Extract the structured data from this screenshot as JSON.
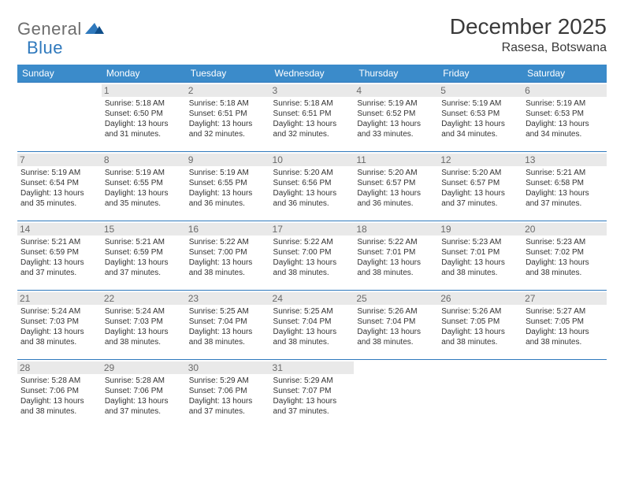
{
  "brand": {
    "general": "General",
    "blue": "Blue"
  },
  "title": "December 2025",
  "location": "Rasesa, Botswana",
  "colors": {
    "header_bg": "#3b8bca",
    "header_text": "#ffffff",
    "border": "#2f79bd",
    "daynum_bg": "#e9e9e9",
    "daynum_text": "#6a6a6a",
    "body_text": "#333333",
    "logo_gray": "#6d6d6d",
    "logo_blue": "#2f79bd"
  },
  "weekdays": [
    "Sunday",
    "Monday",
    "Tuesday",
    "Wednesday",
    "Thursday",
    "Friday",
    "Saturday"
  ],
  "weeks": [
    [
      null,
      {
        "n": "1",
        "sr": "5:18 AM",
        "ss": "6:50 PM",
        "dl": "13 hours and 31 minutes."
      },
      {
        "n": "2",
        "sr": "5:18 AM",
        "ss": "6:51 PM",
        "dl": "13 hours and 32 minutes."
      },
      {
        "n": "3",
        "sr": "5:18 AM",
        "ss": "6:51 PM",
        "dl": "13 hours and 32 minutes."
      },
      {
        "n": "4",
        "sr": "5:19 AM",
        "ss": "6:52 PM",
        "dl": "13 hours and 33 minutes."
      },
      {
        "n": "5",
        "sr": "5:19 AM",
        "ss": "6:53 PM",
        "dl": "13 hours and 34 minutes."
      },
      {
        "n": "6",
        "sr": "5:19 AM",
        "ss": "6:53 PM",
        "dl": "13 hours and 34 minutes."
      }
    ],
    [
      {
        "n": "7",
        "sr": "5:19 AM",
        "ss": "6:54 PM",
        "dl": "13 hours and 35 minutes."
      },
      {
        "n": "8",
        "sr": "5:19 AM",
        "ss": "6:55 PM",
        "dl": "13 hours and 35 minutes."
      },
      {
        "n": "9",
        "sr": "5:19 AM",
        "ss": "6:55 PM",
        "dl": "13 hours and 36 minutes."
      },
      {
        "n": "10",
        "sr": "5:20 AM",
        "ss": "6:56 PM",
        "dl": "13 hours and 36 minutes."
      },
      {
        "n": "11",
        "sr": "5:20 AM",
        "ss": "6:57 PM",
        "dl": "13 hours and 36 minutes."
      },
      {
        "n": "12",
        "sr": "5:20 AM",
        "ss": "6:57 PM",
        "dl": "13 hours and 37 minutes."
      },
      {
        "n": "13",
        "sr": "5:21 AM",
        "ss": "6:58 PM",
        "dl": "13 hours and 37 minutes."
      }
    ],
    [
      {
        "n": "14",
        "sr": "5:21 AM",
        "ss": "6:59 PM",
        "dl": "13 hours and 37 minutes."
      },
      {
        "n": "15",
        "sr": "5:21 AM",
        "ss": "6:59 PM",
        "dl": "13 hours and 37 minutes."
      },
      {
        "n": "16",
        "sr": "5:22 AM",
        "ss": "7:00 PM",
        "dl": "13 hours and 38 minutes."
      },
      {
        "n": "17",
        "sr": "5:22 AM",
        "ss": "7:00 PM",
        "dl": "13 hours and 38 minutes."
      },
      {
        "n": "18",
        "sr": "5:22 AM",
        "ss": "7:01 PM",
        "dl": "13 hours and 38 minutes."
      },
      {
        "n": "19",
        "sr": "5:23 AM",
        "ss": "7:01 PM",
        "dl": "13 hours and 38 minutes."
      },
      {
        "n": "20",
        "sr": "5:23 AM",
        "ss": "7:02 PM",
        "dl": "13 hours and 38 minutes."
      }
    ],
    [
      {
        "n": "21",
        "sr": "5:24 AM",
        "ss": "7:03 PM",
        "dl": "13 hours and 38 minutes."
      },
      {
        "n": "22",
        "sr": "5:24 AM",
        "ss": "7:03 PM",
        "dl": "13 hours and 38 minutes."
      },
      {
        "n": "23",
        "sr": "5:25 AM",
        "ss": "7:04 PM",
        "dl": "13 hours and 38 minutes."
      },
      {
        "n": "24",
        "sr": "5:25 AM",
        "ss": "7:04 PM",
        "dl": "13 hours and 38 minutes."
      },
      {
        "n": "25",
        "sr": "5:26 AM",
        "ss": "7:04 PM",
        "dl": "13 hours and 38 minutes."
      },
      {
        "n": "26",
        "sr": "5:26 AM",
        "ss": "7:05 PM",
        "dl": "13 hours and 38 minutes."
      },
      {
        "n": "27",
        "sr": "5:27 AM",
        "ss": "7:05 PM",
        "dl": "13 hours and 38 minutes."
      }
    ],
    [
      {
        "n": "28",
        "sr": "5:28 AM",
        "ss": "7:06 PM",
        "dl": "13 hours and 38 minutes."
      },
      {
        "n": "29",
        "sr": "5:28 AM",
        "ss": "7:06 PM",
        "dl": "13 hours and 37 minutes."
      },
      {
        "n": "30",
        "sr": "5:29 AM",
        "ss": "7:06 PM",
        "dl": "13 hours and 37 minutes."
      },
      {
        "n": "31",
        "sr": "5:29 AM",
        "ss": "7:07 PM",
        "dl": "13 hours and 37 minutes."
      },
      null,
      null,
      null
    ]
  ],
  "labels": {
    "sunrise": "Sunrise:",
    "sunset": "Sunset:",
    "daylight": "Daylight:"
  }
}
